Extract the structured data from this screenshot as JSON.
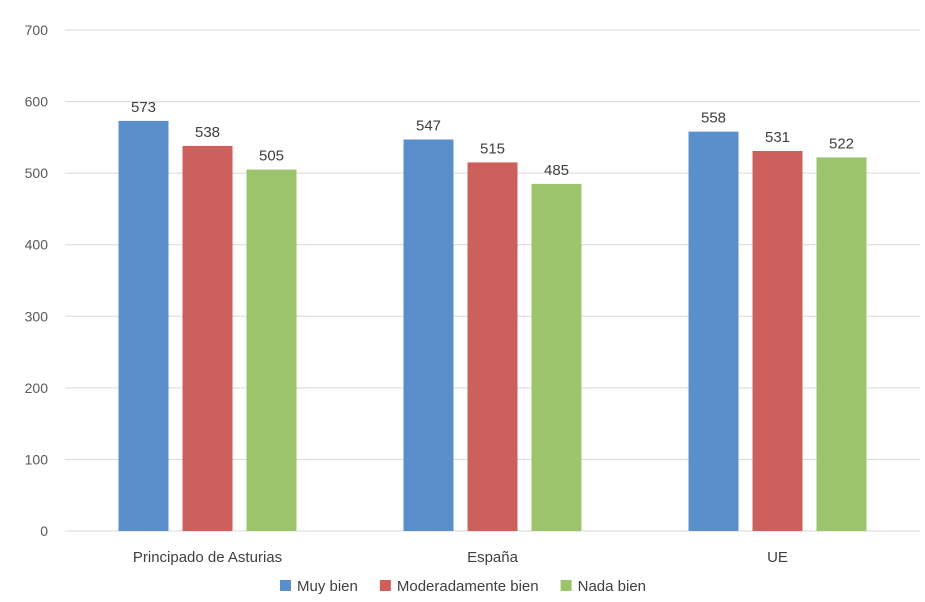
{
  "chart_data": {
    "type": "bar",
    "categories": [
      "Principado de Asturias",
      "España",
      "UE"
    ],
    "series": [
      {
        "name": "Muy bien",
        "color": "#5b8fcc",
        "values": [
          573,
          547,
          558
        ]
      },
      {
        "name": "Moderadamente bien",
        "color": "#cd605c",
        "values": [
          538,
          515,
          531
        ]
      },
      {
        "name": "Nada bien",
        "color": "#9cc46d",
        "values": [
          505,
          485,
          522
        ]
      }
    ],
    "yticks": [
      0,
      100,
      200,
      300,
      400,
      500,
      600,
      700
    ],
    "ylim": [
      0,
      700
    ],
    "grid": true,
    "legend_position": "bottom",
    "data_labels": true
  }
}
